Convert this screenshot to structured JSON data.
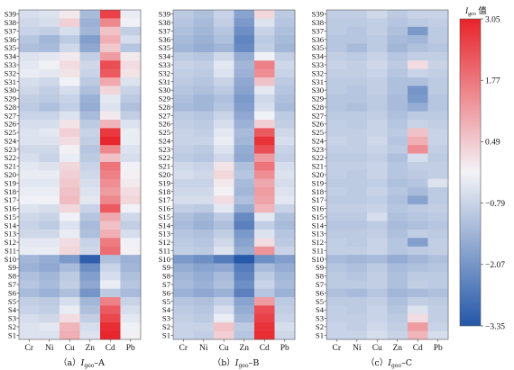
{
  "chart_data": {
    "type": "heatmap",
    "title": "",
    "colorbar": {
      "label_prefix": "I",
      "label_sub": "geo",
      "label_suffix": "值",
      "ticks": [
        "3.05",
        "1.77",
        "0.49",
        "−0.79",
        "−2.07",
        "−3.35"
      ],
      "tick_values": [
        3.05,
        1.77,
        0.49,
        -0.79,
        -2.07,
        -3.35
      ],
      "range": [
        -3.35,
        3.05
      ]
    },
    "colors": {
      "low": "#2457a8",
      "mid": "#f3f3f7",
      "high": "#e8232a"
    },
    "columns": [
      "Cr",
      "Ni",
      "Cu",
      "Zn",
      "Cd",
      "Pb"
    ],
    "rows": [
      "S39",
      "S38",
      "S37",
      "S36",
      "S35",
      "S34",
      "S33",
      "S32",
      "S31",
      "S30",
      "S29",
      "S28",
      "S27",
      "S26",
      "S25",
      "S24",
      "S23",
      "S22",
      "S21",
      "S20",
      "S19",
      "S18",
      "S17",
      "S16",
      "S15",
      "S14",
      "S13",
      "S12",
      "S11",
      "S10",
      "S9",
      "S8",
      "S7",
      "S6",
      "S5",
      "S4",
      "S3",
      "S2",
      "S1"
    ],
    "panels": [
      {
        "caption_prefix": "（a）",
        "caption_I": "I",
        "caption_sub": "geo",
        "caption_suffix": "–A",
        "values": [
          [
            -0.6,
            -0.5,
            0.0,
            -1.3,
            2.6,
            -0.3
          ],
          [
            -0.7,
            -0.6,
            0.4,
            -1.5,
            1.5,
            -0.2
          ],
          [
            -0.8,
            -0.9,
            -0.6,
            -1.4,
            0.6,
            -0.9
          ],
          [
            -1.1,
            -1.4,
            -1.0,
            -1.9,
            0.9,
            -0.6
          ],
          [
            -1.2,
            -1.3,
            -0.7,
            -1.7,
            0.5,
            -1.1
          ],
          [
            -0.5,
            -0.4,
            0.0,
            -0.9,
            1.2,
            0.0
          ],
          [
            -0.4,
            -0.2,
            0.2,
            -0.7,
            2.4,
            0.2
          ],
          [
            -0.3,
            -0.4,
            0.1,
            -0.8,
            2.2,
            0.1
          ],
          [
            -0.6,
            -0.7,
            -0.2,
            -1.0,
            1.0,
            -0.5
          ],
          [
            -0.7,
            -0.9,
            -0.6,
            -1.2,
            0.3,
            -0.8
          ],
          [
            -0.9,
            -1.0,
            -0.8,
            -1.5,
            -0.4,
            -1.0
          ],
          [
            -1.0,
            -1.2,
            -0.9,
            -1.6,
            -0.5,
            -1.2
          ],
          [
            -0.8,
            -0.8,
            -0.5,
            -1.3,
            0.0,
            -0.9
          ],
          [
            -0.6,
            -0.6,
            0.1,
            -1.0,
            0.8,
            -0.5
          ],
          [
            -0.5,
            -0.4,
            0.4,
            -0.8,
            2.7,
            -0.3
          ],
          [
            -0.5,
            -0.5,
            0.2,
            -0.9,
            3.0,
            -0.3
          ],
          [
            -0.7,
            -0.7,
            -0.1,
            -1.1,
            1.5,
            -0.5
          ],
          [
            -0.6,
            -0.8,
            -0.3,
            -1.0,
            0.6,
            -0.6
          ],
          [
            -0.4,
            -0.5,
            0.3,
            -0.8,
            1.8,
            -0.2
          ],
          [
            -0.3,
            -0.3,
            0.4,
            -0.7,
            1.6,
            -0.1
          ],
          [
            -0.4,
            -0.4,
            0.5,
            -0.6,
            1.4,
            0.0
          ],
          [
            -0.3,
            -0.3,
            0.6,
            -0.5,
            1.2,
            0.2
          ],
          [
            -0.2,
            -0.2,
            0.7,
            -0.4,
            1.5,
            0.3
          ],
          [
            -0.5,
            -0.6,
            0.3,
            -0.8,
            2.2,
            -0.2
          ],
          [
            -0.7,
            -0.8,
            -0.2,
            -1.1,
            1.0,
            -0.7
          ],
          [
            -0.8,
            -1.0,
            -0.5,
            -1.3,
            0.6,
            -0.9
          ],
          [
            -0.7,
            -0.7,
            -0.3,
            -1.2,
            0.9,
            -0.6
          ],
          [
            -0.4,
            -0.4,
            0.2,
            -0.8,
            1.7,
            -0.2
          ],
          [
            -0.3,
            -0.3,
            0.3,
            -0.7,
            1.9,
            -0.1
          ],
          [
            -1.4,
            -1.6,
            -2.0,
            -3.2,
            -1.2,
            -1.5
          ],
          [
            -1.5,
            -1.7,
            -1.3,
            -2.2,
            -0.8,
            -1.4
          ],
          [
            -1.2,
            -1.4,
            -1.0,
            -1.9,
            -0.6,
            -1.2
          ],
          [
            -1.1,
            -1.3,
            -0.9,
            -1.7,
            -0.3,
            -1.1
          ],
          [
            -1.3,
            -1.5,
            -1.2,
            -2.1,
            -1.0,
            -1.3
          ],
          [
            -0.9,
            -1.0,
            -0.6,
            -1.4,
            1.6,
            -0.8
          ],
          [
            -0.8,
            -0.9,
            -0.3,
            -1.2,
            2.2,
            -0.6
          ],
          [
            -0.6,
            -0.7,
            0.2,
            -0.9,
            2.5,
            -0.4
          ],
          [
            -0.5,
            -0.4,
            0.8,
            -0.6,
            2.9,
            -0.2
          ],
          [
            -0.5,
            -0.5,
            0.9,
            -0.5,
            3.0,
            -0.1
          ]
        ]
      },
      {
        "caption_prefix": "（b）",
        "caption_I": "I",
        "caption_sub": "geo",
        "caption_suffix": "–B",
        "values": [
          [
            -1.0,
            -1.2,
            -0.8,
            -1.8,
            0.3,
            -1.0
          ],
          [
            -1.1,
            -1.3,
            -0.9,
            -2.0,
            -0.5,
            -1.1
          ],
          [
            -1.2,
            -1.4,
            -1.1,
            -2.2,
            -0.8,
            -1.2
          ],
          [
            -1.3,
            -1.5,
            -1.2,
            -2.4,
            -1.0,
            -1.3
          ],
          [
            -1.4,
            -1.6,
            -1.4,
            -2.3,
            -0.9,
            -1.4
          ],
          [
            -1.0,
            -1.1,
            -0.7,
            -1.6,
            -0.2,
            -0.9
          ],
          [
            -0.8,
            -0.9,
            -0.4,
            -1.4,
            1.6,
            -0.7
          ],
          [
            -0.9,
            -1.0,
            -0.5,
            -1.5,
            1.4,
            -0.8
          ],
          [
            -1.0,
            -1.1,
            -0.8,
            -1.7,
            0.6,
            -1.0
          ],
          [
            -1.1,
            -1.2,
            -1.0,
            -1.8,
            -0.4,
            -1.1
          ],
          [
            -1.2,
            -1.4,
            -1.2,
            -2.0,
            -0.7,
            -1.2
          ],
          [
            -1.3,
            -1.4,
            -1.1,
            -1.9,
            -0.6,
            -1.3
          ],
          [
            -1.0,
            -1.1,
            -0.8,
            -1.7,
            -0.2,
            -1.0
          ],
          [
            -0.9,
            -1.0,
            -0.6,
            -1.5,
            0.4,
            -0.9
          ],
          [
            -0.8,
            -0.9,
            -0.4,
            -1.3,
            2.2,
            -0.7
          ],
          [
            -0.8,
            -0.8,
            -0.3,
            -1.4,
            2.8,
            -0.6
          ],
          [
            -0.9,
            -1.0,
            -0.5,
            -1.6,
            2.4,
            -0.8
          ],
          [
            -1.0,
            -1.1,
            -0.7,
            -1.7,
            1.2,
            -0.9
          ],
          [
            -0.7,
            -0.8,
            0.1,
            -1.2,
            1.8,
            -0.6
          ],
          [
            -0.6,
            -0.7,
            0.3,
            -1.1,
            1.4,
            -0.5
          ],
          [
            -0.8,
            -0.8,
            0.0,
            -1.3,
            1.0,
            -0.6
          ],
          [
            -0.7,
            -0.7,
            -0.1,
            -1.4,
            1.2,
            -0.5
          ],
          [
            -0.6,
            -0.6,
            0.2,
            -1.2,
            1.1,
            -0.4
          ],
          [
            -0.9,
            -1.0,
            -0.4,
            -1.6,
            0.8,
            -0.8
          ],
          [
            -1.2,
            -1.4,
            -1.0,
            -2.3,
            -0.4,
            -1.2
          ],
          [
            -1.3,
            -1.5,
            -1.2,
            -2.5,
            -0.9,
            -1.3
          ],
          [
            -1.1,
            -1.2,
            -0.9,
            -2.0,
            -0.5,
            -1.1
          ],
          [
            -1.0,
            -1.1,
            -0.7,
            -1.8,
            0.2,
            -1.0
          ],
          [
            -0.9,
            -1.0,
            -0.5,
            -1.6,
            1.3,
            -0.8
          ],
          [
            -2.0,
            -2.2,
            -2.6,
            -3.3,
            -2.2,
            -1.9
          ],
          [
            -1.6,
            -1.8,
            -1.7,
            -2.6,
            -1.3,
            -1.6
          ],
          [
            -1.4,
            -1.6,
            -1.3,
            -2.4,
            -1.0,
            -1.4
          ],
          [
            -1.3,
            -1.5,
            -1.2,
            -2.2,
            -0.8,
            -1.3
          ],
          [
            -1.5,
            -1.7,
            -1.5,
            -2.5,
            -1.1,
            -1.5
          ],
          [
            -1.1,
            -1.2,
            -0.9,
            -1.8,
            1.2,
            -1.0
          ],
          [
            -1.0,
            -1.1,
            -0.6,
            -1.6,
            2.4,
            -0.9
          ],
          [
            -0.9,
            -1.0,
            -0.3,
            -1.4,
            2.6,
            -0.8
          ],
          [
            -0.8,
            -0.8,
            0.6,
            -1.0,
            2.8,
            -0.6
          ],
          [
            -0.8,
            -0.9,
            0.4,
            -1.1,
            2.9,
            -0.7
          ]
        ]
      },
      {
        "caption_prefix": "（c）",
        "caption_I": "I",
        "caption_sub": "geo",
        "caption_suffix": "–C",
        "values": [
          [
            -0.9,
            -0.9,
            -0.7,
            -1.0,
            -0.8,
            -0.8
          ],
          [
            -1.0,
            -1.0,
            -0.9,
            -1.1,
            -1.0,
            -0.9
          ],
          [
            -1.0,
            -1.1,
            -0.9,
            -1.2,
            -2.0,
            -1.0
          ],
          [
            -1.1,
            -1.1,
            -1.0,
            -1.3,
            -1.4,
            -1.0
          ],
          [
            -1.1,
            -1.3,
            -1.0,
            -1.4,
            -1.2,
            -1.1
          ],
          [
            -0.9,
            -1.0,
            -0.8,
            -1.1,
            -0.9,
            -0.9
          ],
          [
            -0.8,
            -0.9,
            -0.7,
            -1.0,
            0.2,
            -0.8
          ],
          [
            -0.9,
            -0.9,
            -0.8,
            -1.1,
            -0.8,
            -0.9
          ],
          [
            -1.0,
            -1.0,
            -0.9,
            -1.2,
            -1.2,
            -1.0
          ],
          [
            -1.0,
            -1.1,
            -0.9,
            -1.2,
            -2.1,
            -1.0
          ],
          [
            -1.1,
            -1.1,
            -1.0,
            -1.3,
            -2.0,
            -1.1
          ],
          [
            -1.1,
            -1.2,
            -1.0,
            -1.3,
            -1.6,
            -1.1
          ],
          [
            -1.0,
            -1.0,
            -0.9,
            -1.2,
            -1.0,
            -1.0
          ],
          [
            -0.9,
            -1.0,
            -0.8,
            -1.1,
            -0.8,
            -0.9
          ],
          [
            -0.9,
            -0.9,
            -0.8,
            -1.0,
            0.6,
            -0.8
          ],
          [
            -0.8,
            -0.9,
            -0.7,
            -1.1,
            0.9,
            -0.8
          ],
          [
            -0.9,
            -0.9,
            -0.8,
            -1.0,
            1.4,
            -0.9
          ],
          [
            -1.0,
            -1.0,
            -0.9,
            -1.2,
            -0.6,
            -1.0
          ],
          [
            -0.9,
            -0.9,
            -0.8,
            -1.1,
            -0.9,
            -0.9
          ],
          [
            -0.9,
            -1.0,
            -0.8,
            -1.1,
            -1.0,
            -0.9
          ],
          [
            -1.0,
            -1.0,
            -0.9,
            -1.2,
            -1.1,
            -0.5
          ],
          [
            -0.9,
            -1.0,
            -0.8,
            -1.1,
            -1.3,
            -1.0
          ],
          [
            -1.0,
            -1.0,
            -0.9,
            -1.2,
            -1.8,
            -1.0
          ],
          [
            -0.9,
            -0.9,
            -0.8,
            -1.1,
            -1.0,
            -0.9
          ],
          [
            -1.0,
            -1.0,
            -0.6,
            -1.2,
            -1.1,
            -1.0
          ],
          [
            -1.1,
            -1.1,
            -1.0,
            -1.3,
            -1.2,
            -1.1
          ],
          [
            -1.0,
            -1.0,
            -0.9,
            -1.2,
            -0.9,
            -1.0
          ],
          [
            -0.9,
            -1.0,
            -0.8,
            -1.1,
            -1.9,
            -0.9
          ],
          [
            -0.9,
            -0.9,
            -0.8,
            -1.1,
            -1.0,
            -0.9
          ],
          [
            -1.3,
            -1.4,
            -1.3,
            -1.6,
            -1.4,
            -1.2
          ],
          [
            -1.1,
            -1.2,
            -1.0,
            -1.3,
            -1.2,
            -1.1
          ],
          [
            -1.0,
            -1.1,
            -0.9,
            -1.2,
            -1.0,
            -1.0
          ],
          [
            -1.0,
            -1.0,
            -0.9,
            -1.2,
            -0.9,
            -1.0
          ],
          [
            -1.2,
            -1.3,
            -1.1,
            -1.4,
            -1.3,
            -1.2
          ],
          [
            -1.0,
            -1.0,
            -0.9,
            -1.2,
            -0.9,
            -1.0
          ],
          [
            -0.9,
            -1.0,
            -0.8,
            -1.1,
            -0.5,
            -0.9
          ],
          [
            -0.9,
            -0.9,
            -0.8,
            -1.0,
            0.2,
            -0.9
          ],
          [
            -0.8,
            -0.9,
            -0.7,
            -0.9,
            1.2,
            -0.8
          ],
          [
            -0.8,
            -0.8,
            -0.6,
            -0.8,
            0.8,
            -0.6
          ]
        ]
      }
    ]
  }
}
